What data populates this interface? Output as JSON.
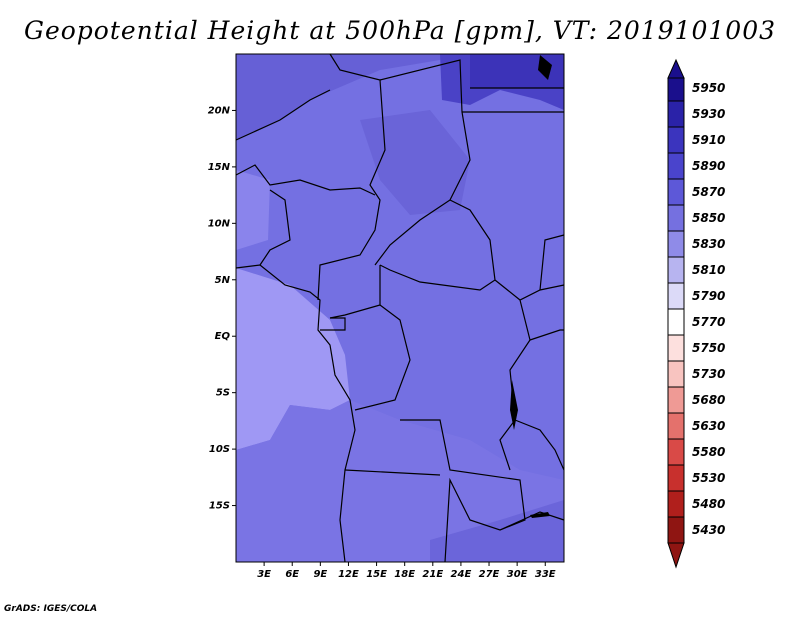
{
  "title": "Geopotential Height at 500hPa [gpm], VT: 2019101003",
  "footer": "GrADS: IGES/COLA",
  "map": {
    "lat_labels": [
      "20N",
      "15N",
      "10N",
      "5N",
      "EQ",
      "5S",
      "10S",
      "15S"
    ],
    "lat_values": [
      20,
      15,
      10,
      5,
      0,
      -5,
      -10,
      -15
    ],
    "lon_labels": [
      "3E",
      "6E",
      "9E",
      "12E",
      "15E",
      "18E",
      "21E",
      "24E",
      "27E",
      "30E",
      "33E"
    ],
    "lon_values": [
      3,
      6,
      9,
      12,
      15,
      18,
      21,
      24,
      27,
      30,
      33
    ],
    "extent": {
      "lon_min": 0,
      "lon_max": 35,
      "lat_min": -20,
      "lat_max": 25
    }
  },
  "colorbar": {
    "levels": [
      "5950",
      "5930",
      "5910",
      "5890",
      "5870",
      "5850",
      "5830",
      "5810",
      "5790",
      "5770",
      "5750",
      "5730",
      "5680",
      "5630",
      "5580",
      "5530",
      "5480",
      "5430"
    ],
    "colors": [
      "#1a0f8c",
      "#2a22a8",
      "#3b34be",
      "#4a44cc",
      "#5d58d8",
      "#7570e0",
      "#8f8be8",
      "#b7b4f0",
      "#dcdaf8",
      "#ffffff",
      "#fde0de",
      "#f8c4c0",
      "#ef9a95",
      "#e4716c",
      "#d94a47",
      "#c8302d",
      "#b01f1c",
      "#8f1512"
    ]
  }
}
